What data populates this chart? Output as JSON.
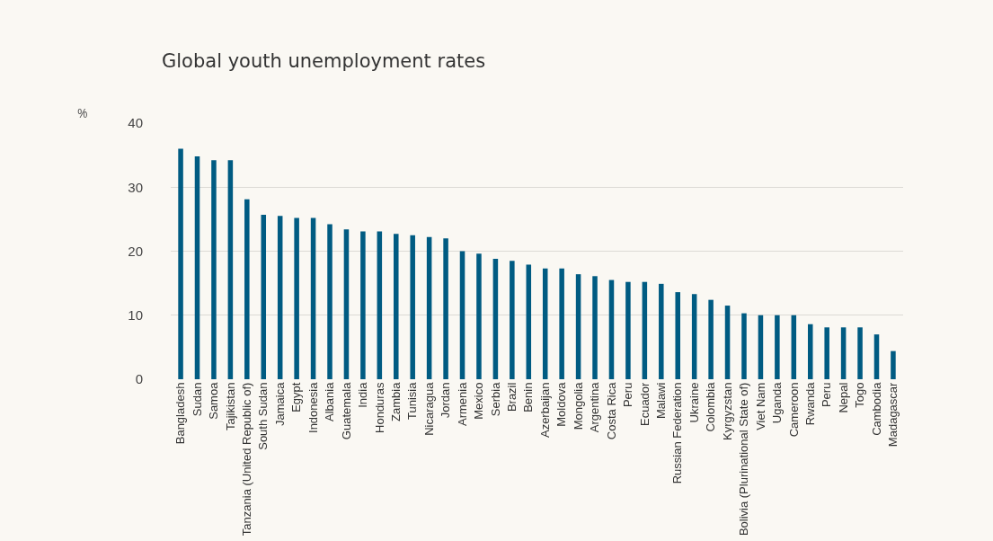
{
  "chart_data": {
    "type": "bar",
    "title": "Global youth unemployment rates",
    "ylabel": "%",
    "categories": [
      "Bangladesh",
      "Sudan",
      "Samoa",
      "Tajikistan",
      "Tanzania (United Republic of)",
      "South Sudan",
      "Jamaica",
      "Egypt",
      "Indonesia",
      "Albania",
      "Guatemala",
      "India",
      "Honduras",
      "Zambia",
      "Tunisia",
      "Nicaragua",
      "Jordan",
      "Armenia",
      "Mexico",
      "Serbia",
      "Brazil",
      "Benin",
      "Azerbaijan",
      "Moldova",
      "Mongolia",
      "Argentina",
      "Costa Rica",
      "Peru",
      "Ecuador",
      "Malawi",
      "Russian Federation",
      "Ukraine",
      "Colombia",
      "Kyrgyzstan",
      "Bolivia (Plurinational State of)",
      "Viet Nam",
      "Uganda",
      "Cameroon",
      "Rwanda",
      "Peru",
      "Nepal",
      "Togo",
      "Cambodia",
      "Madagascar"
    ],
    "values": [
      36.0,
      34.8,
      34.2,
      34.2,
      28.1,
      25.7,
      25.5,
      25.2,
      25.2,
      24.2,
      23.4,
      23.1,
      23.1,
      22.7,
      22.5,
      22.2,
      22.0,
      20.0,
      19.6,
      18.8,
      18.5,
      17.9,
      17.3,
      17.3,
      16.4,
      16.1,
      15.5,
      15.2,
      15.2,
      14.9,
      13.6,
      13.3,
      12.4,
      11.5,
      10.3,
      10.0,
      10.0,
      10.0,
      8.6,
      8.1,
      8.1,
      8.1,
      7.0,
      4.4
    ],
    "color": "#005b82",
    "ylim": [
      0,
      40
    ],
    "yticks": [
      0,
      10,
      20,
      30,
      40
    ],
    "grid": "y"
  }
}
